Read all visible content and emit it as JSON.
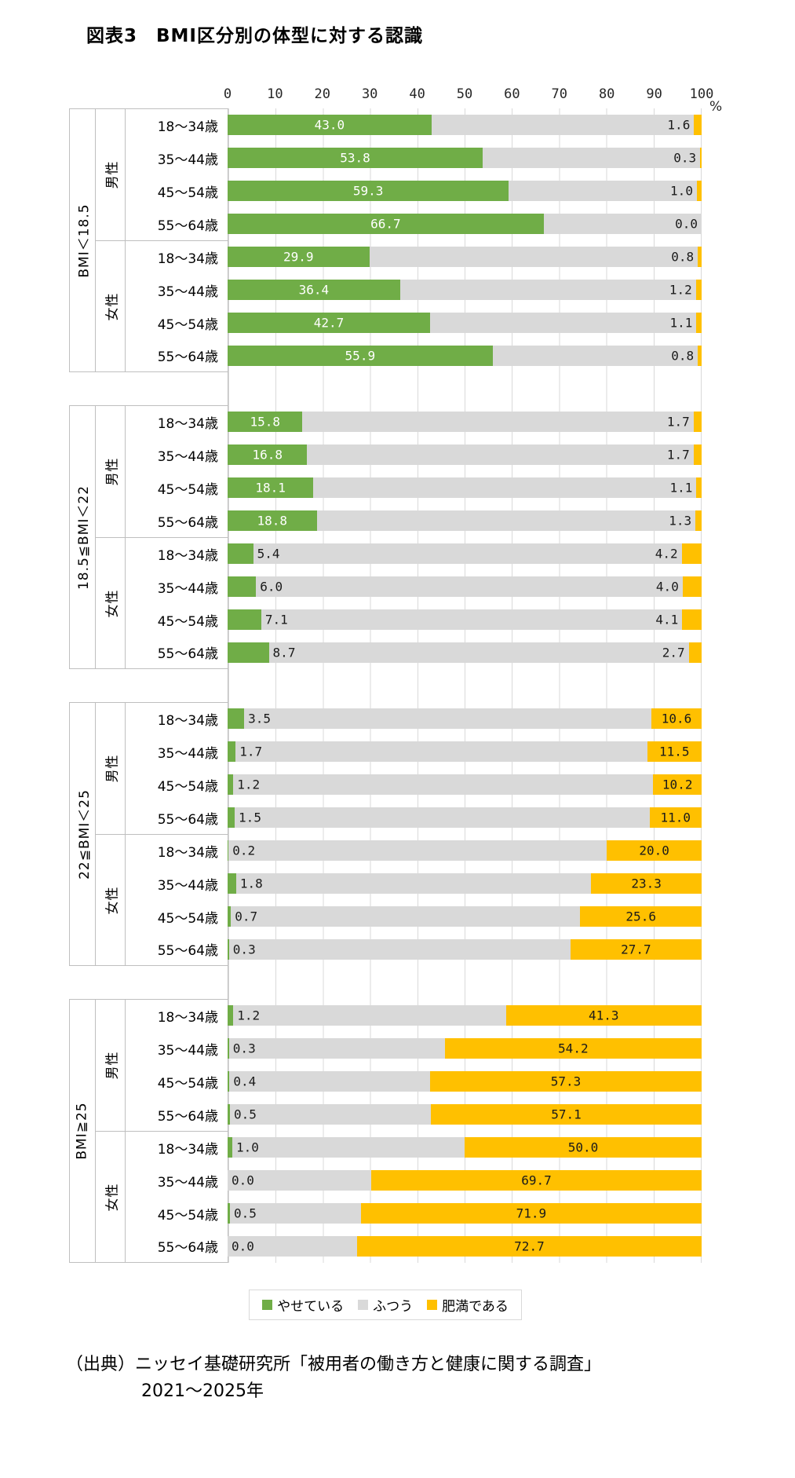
{
  "title": "図表3　BMI区分別の体型に対する認識",
  "axis": {
    "ticks": [
      0,
      10,
      20,
      30,
      40,
      50,
      60,
      70,
      80,
      90,
      100
    ],
    "unit": "%"
  },
  "legend": [
    {
      "label": "やせている",
      "color": "#70AD47"
    },
    {
      "label": "ふつう",
      "color": "#D9D9D9"
    },
    {
      "label": "肥満である",
      "color": "#FFC000"
    }
  ],
  "source": {
    "line1": "（出典）ニッセイ基礎研究所「被用者の働き方と健康に関する調査」",
    "line2": "2021〜2025年"
  },
  "chart_data": {
    "type": "bar",
    "stacked": true,
    "orientation": "horizontal",
    "xlim": [
      0,
      100
    ],
    "grid": true,
    "legend_position": "bottom",
    "series_names": [
      "やせている",
      "ふつう",
      "肥満である"
    ],
    "note": "ふつう = 100 - やせている - 肥満である",
    "groups": [
      {
        "bmi": "BMI＜18.5",
        "genders": [
          {
            "gender": "男性",
            "rows": [
              {
                "age": "18〜34歳",
                "thin": 43.0,
                "obese": 1.6
              },
              {
                "age": "35〜44歳",
                "thin": 53.8,
                "obese": 0.3
              },
              {
                "age": "45〜54歳",
                "thin": 59.3,
                "obese": 1.0
              },
              {
                "age": "55〜64歳",
                "thin": 66.7,
                "obese": 0.0
              }
            ]
          },
          {
            "gender": "女性",
            "rows": [
              {
                "age": "18〜34歳",
                "thin": 29.9,
                "obese": 0.8
              },
              {
                "age": "35〜44歳",
                "thin": 36.4,
                "obese": 1.2
              },
              {
                "age": "45〜54歳",
                "thin": 42.7,
                "obese": 1.1
              },
              {
                "age": "55〜64歳",
                "thin": 55.9,
                "obese": 0.8
              }
            ]
          }
        ]
      },
      {
        "bmi": "18.5≦BMI＜22",
        "genders": [
          {
            "gender": "男性",
            "rows": [
              {
                "age": "18〜34歳",
                "thin": 15.8,
                "obese": 1.7
              },
              {
                "age": "35〜44歳",
                "thin": 16.8,
                "obese": 1.7
              },
              {
                "age": "45〜54歳",
                "thin": 18.1,
                "obese": 1.1
              },
              {
                "age": "55〜64歳",
                "thin": 18.8,
                "obese": 1.3
              }
            ]
          },
          {
            "gender": "女性",
            "rows": [
              {
                "age": "18〜34歳",
                "thin": 5.4,
                "obese": 4.2
              },
              {
                "age": "35〜44歳",
                "thin": 6.0,
                "obese": 4.0
              },
              {
                "age": "45〜54歳",
                "thin": 7.1,
                "obese": 4.1
              },
              {
                "age": "55〜64歳",
                "thin": 8.7,
                "obese": 2.7
              }
            ]
          }
        ]
      },
      {
        "bmi": "22≦BMI＜25",
        "genders": [
          {
            "gender": "男性",
            "rows": [
              {
                "age": "18〜34歳",
                "thin": 3.5,
                "obese": 10.6
              },
              {
                "age": "35〜44歳",
                "thin": 1.7,
                "obese": 11.5
              },
              {
                "age": "45〜54歳",
                "thin": 1.2,
                "obese": 10.2
              },
              {
                "age": "55〜64歳",
                "thin": 1.5,
                "obese": 11.0
              }
            ]
          },
          {
            "gender": "女性",
            "rows": [
              {
                "age": "18〜34歳",
                "thin": 0.2,
                "obese": 20.0
              },
              {
                "age": "35〜44歳",
                "thin": 1.8,
                "obese": 23.3
              },
              {
                "age": "45〜54歳",
                "thin": 0.7,
                "obese": 25.6
              },
              {
                "age": "55〜64歳",
                "thin": 0.3,
                "obese": 27.7
              }
            ]
          }
        ]
      },
      {
        "bmi": "BMI≧25",
        "genders": [
          {
            "gender": "男性",
            "rows": [
              {
                "age": "18〜34歳",
                "thin": 1.2,
                "obese": 41.3
              },
              {
                "age": "35〜44歳",
                "thin": 0.3,
                "obese": 54.2
              },
              {
                "age": "45〜54歳",
                "thin": 0.4,
                "obese": 57.3
              },
              {
                "age": "55〜64歳",
                "thin": 0.5,
                "obese": 57.1
              }
            ]
          },
          {
            "gender": "女性",
            "rows": [
              {
                "age": "18〜34歳",
                "thin": 1.0,
                "obese": 50.0
              },
              {
                "age": "35〜44歳",
                "thin": 0.0,
                "obese": 69.7
              },
              {
                "age": "45〜54歳",
                "thin": 0.5,
                "obese": 71.9
              },
              {
                "age": "55〜64歳",
                "thin": 0.0,
                "obese": 72.7
              }
            ]
          }
        ]
      }
    ]
  }
}
